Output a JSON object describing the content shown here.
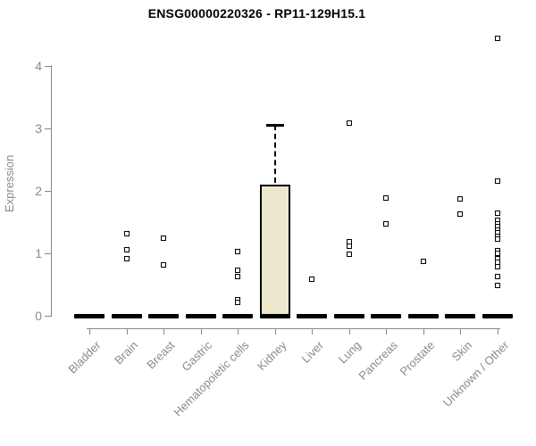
{
  "page": {
    "title": "ENSG00000220326 - RP11-129H15.1"
  },
  "chart_data": {
    "type": "boxplot",
    "title": "ENSG00000220326 - RP11-129H15.1",
    "xlabel": "",
    "ylabel": "Expression",
    "ylim": [
      0,
      4.6
    ],
    "yticks": [
      0,
      1,
      2,
      3,
      4
    ],
    "grid": false,
    "legend": null,
    "colors": {
      "box_fill": "#ece7cd",
      "box_border": "#000000",
      "axis": "#888888",
      "tick_label": "#8a8a8a",
      "title": "#000000",
      "outlier": "#000000"
    },
    "categories": [
      "Bladder",
      "Brain",
      "Breast",
      "Gastric",
      "Hematopoietic cells",
      "Kidney",
      "Liver",
      "Lung",
      "Pancreas",
      "Prostate",
      "Skin",
      "Unknown / Other"
    ],
    "boxes": [
      {
        "label": "Bladder",
        "q1": 0,
        "median": 0,
        "q3": 0,
        "whisker_low": 0,
        "whisker_high": 0,
        "outliers": []
      },
      {
        "label": "Brain",
        "q1": 0,
        "median": 0,
        "q3": 0,
        "whisker_low": 0,
        "whisker_high": 0,
        "outliers": [
          1.31,
          1.06,
          0.92
        ]
      },
      {
        "label": "Breast",
        "q1": 0,
        "median": 0,
        "q3": 0,
        "whisker_low": 0,
        "whisker_high": 0,
        "outliers": [
          1.24,
          0.82
        ]
      },
      {
        "label": "Gastric",
        "q1": 0,
        "median": 0,
        "q3": 0,
        "whisker_low": 0,
        "whisker_high": 0,
        "outliers": []
      },
      {
        "label": "Hematopoietic cells",
        "q1": 0,
        "median": 0,
        "q3": 0,
        "whisker_low": 0,
        "whisker_high": 0,
        "outliers": [
          1.03,
          0.73,
          0.63,
          0.26,
          0.22
        ]
      },
      {
        "label": "Kidney",
        "q1": 0,
        "median": 0,
        "q3": 2.1,
        "whisker_low": 0,
        "whisker_high": 3.05,
        "outliers": []
      },
      {
        "label": "Liver",
        "q1": 0,
        "median": 0,
        "q3": 0,
        "whisker_low": 0,
        "whisker_high": 0,
        "outliers": [
          0.59
        ]
      },
      {
        "label": "Lung",
        "q1": 0,
        "median": 0,
        "q3": 0,
        "whisker_low": 0,
        "whisker_high": 0,
        "outliers": [
          3.08,
          1.18,
          1.11,
          0.98
        ]
      },
      {
        "label": "Pancreas",
        "q1": 0,
        "median": 0,
        "q3": 0,
        "whisker_low": 0,
        "whisker_high": 0,
        "outliers": [
          1.88,
          1.47
        ]
      },
      {
        "label": "Prostate",
        "q1": 0,
        "median": 0,
        "q3": 0,
        "whisker_low": 0,
        "whisker_high": 0,
        "outliers": [
          0.87
        ]
      },
      {
        "label": "Skin",
        "q1": 0,
        "median": 0,
        "q3": 0,
        "whisker_low": 0,
        "whisker_high": 0,
        "outliers": [
          1.87,
          1.63
        ]
      },
      {
        "label": "Unknown / Other",
        "q1": 0,
        "median": 0,
        "q3": 0,
        "whisker_low": 0,
        "whisker_high": 0,
        "outliers": [
          4.44,
          2.15,
          1.64,
          1.52,
          1.47,
          1.42,
          1.37,
          1.32,
          1.27,
          1.23,
          1.04,
          1.0,
          0.92,
          0.86,
          0.79,
          0.63,
          0.49
        ]
      }
    ]
  }
}
